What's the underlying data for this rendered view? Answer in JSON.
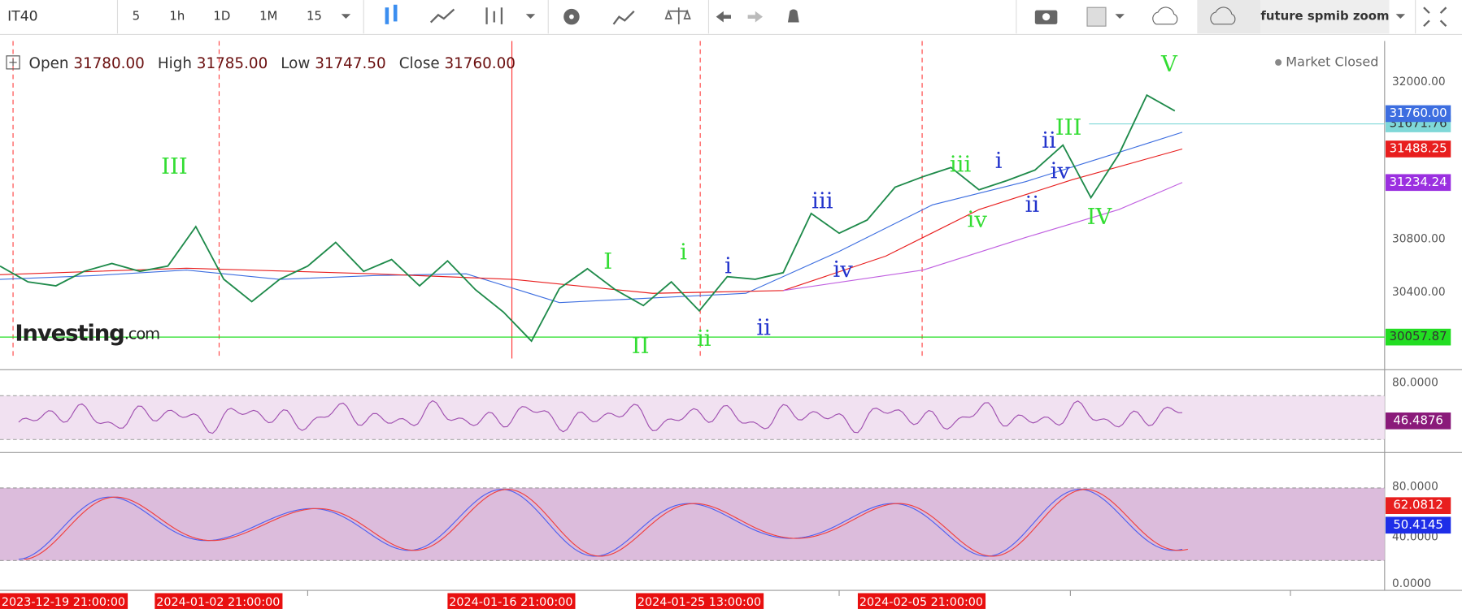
{
  "toolbar": {
    "symbol": "IT40",
    "intervals": [
      "5",
      "1h",
      "1D",
      "1M",
      "15"
    ],
    "search": "future spmib zoom"
  },
  "ohlc": [
    {
      "label": "Open",
      "value": "31780.00"
    },
    {
      "label": "High",
      "value": "31785.00"
    },
    {
      "label": "Low",
      "value": "31747.50"
    },
    {
      "label": "Close",
      "value": "31760.00"
    }
  ],
  "status": "Market Closed",
  "watermark": {
    "brand": "Investing",
    "suffix": ".com"
  },
  "price_axis": {
    "ticks": [
      "32000.00",
      "30800.00",
      "30400.00"
    ],
    "markers": [
      {
        "label": "31671.76",
        "color": "#7fd8d8"
      },
      {
        "label": "31760.00",
        "color": "#3d6ee0"
      },
      {
        "label": "31488.25",
        "color": "#e81e1e"
      },
      {
        "label": "31234.24",
        "color": "#9b30e0"
      },
      {
        "label": "30057.87",
        "color": "#22dd22"
      }
    ]
  },
  "price_series": {
    "color": "#1e8a4a",
    "values": [
      30600,
      30480,
      30450,
      30560,
      30620,
      30560,
      30600,
      30900,
      30500,
      30330,
      30500,
      30600,
      30780,
      30560,
      30650,
      30450,
      30640,
      30420,
      30250,
      30030,
      30430,
      30580,
      30420,
      30300,
      30480,
      30260,
      30520,
      30500,
      30550,
      31000,
      30850,
      30950,
      31200,
      31280,
      31350,
      31180,
      31250,
      31330,
      31520,
      31120,
      31450,
      31900,
      31780
    ]
  },
  "waves": [
    {
      "text": "III",
      "color": "#33dd33"
    },
    {
      "text": "I",
      "color": "#33dd33"
    },
    {
      "text": "i",
      "color": "#33dd33"
    },
    {
      "text": "II",
      "color": "#33dd33"
    },
    {
      "text": "ii",
      "color": "#33dd33"
    },
    {
      "text": "i",
      "color": "#2233cc"
    },
    {
      "text": "ii",
      "color": "#2233cc"
    },
    {
      "text": "iii",
      "color": "#2233cc"
    },
    {
      "text": "iv",
      "color": "#2233cc"
    },
    {
      "text": "iii",
      "color": "#33dd33"
    },
    {
      "text": "iv",
      "color": "#33dd33"
    },
    {
      "text": "i",
      "color": "#2233cc"
    },
    {
      "text": "ii",
      "color": "#2233cc"
    },
    {
      "text": "III",
      "color": "#33dd33"
    },
    {
      "text": "ii",
      "color": "#2233cc"
    },
    {
      "text": "iv",
      "color": "#2233cc"
    },
    {
      "text": "IV",
      "color": "#33dd33"
    },
    {
      "text": "V",
      "color": "#33dd33"
    }
  ],
  "rsi_axis": {
    "ticks": [
      "80.0000"
    ],
    "marker": "46.4876"
  },
  "stoch_axis": {
    "ticks": [
      "80.0000",
      "40.0000",
      "0.0000"
    ],
    "markers": [
      {
        "label": "62.0812",
        "color": "#e81e1e"
      },
      {
        "label": "50.4145",
        "color": "#1e2ee8"
      }
    ]
  },
  "time_labels": [
    "2023-12-19 21:00:00",
    "2024-01-02 21:00:00",
    "2024-01-16 21:00:00",
    "2024-01-25 13:00:00",
    "2024-02-05 21:00:00"
  ]
}
